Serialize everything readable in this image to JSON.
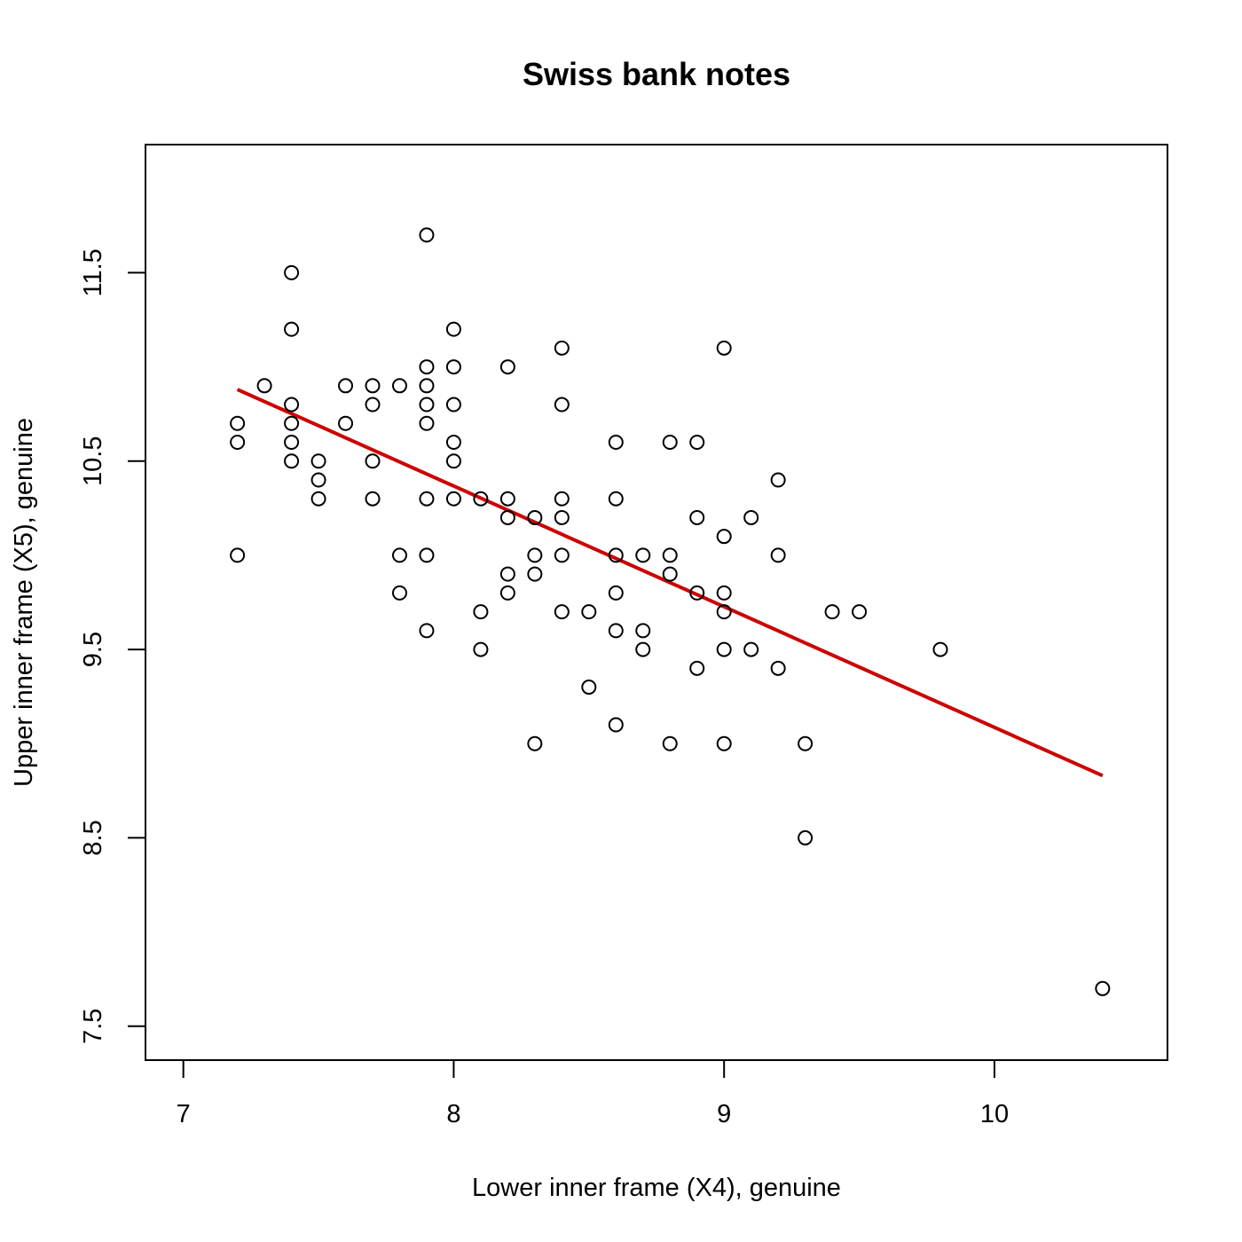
{
  "chart_data": {
    "type": "scatter",
    "title": "Swiss bank notes",
    "xlabel": "Lower inner frame (X4), genuine",
    "ylabel": "Upper inner frame (X5), genuine",
    "xlim": [
      6.86,
      10.64
    ],
    "ylim": [
      7.32,
      12.18
    ],
    "xticks": [
      "7",
      "8",
      "9",
      "10"
    ],
    "yticks": [
      "7.5",
      "8.5",
      "9.5",
      "10.5",
      "11.5"
    ],
    "grid": false,
    "point_color": "#000000",
    "line_color": "#cc0000",
    "points": [
      {
        "x": 7.2,
        "y": 10.7
      },
      {
        "x": 7.2,
        "y": 10.6
      },
      {
        "x": 7.2,
        "y": 10.0
      },
      {
        "x": 7.3,
        "y": 10.9
      },
      {
        "x": 7.4,
        "y": 11.5
      },
      {
        "x": 7.4,
        "y": 11.2
      },
      {
        "x": 7.4,
        "y": 10.8
      },
      {
        "x": 7.4,
        "y": 10.7
      },
      {
        "x": 7.4,
        "y": 10.6
      },
      {
        "x": 7.4,
        "y": 10.5
      },
      {
        "x": 7.5,
        "y": 10.5
      },
      {
        "x": 7.5,
        "y": 10.4
      },
      {
        "x": 7.5,
        "y": 10.3
      },
      {
        "x": 7.6,
        "y": 10.9
      },
      {
        "x": 7.6,
        "y": 10.7
      },
      {
        "x": 7.7,
        "y": 10.9
      },
      {
        "x": 7.7,
        "y": 10.8
      },
      {
        "x": 7.7,
        "y": 10.5
      },
      {
        "x": 7.7,
        "y": 10.3
      },
      {
        "x": 7.8,
        "y": 10.9
      },
      {
        "x": 7.8,
        "y": 10.0
      },
      {
        "x": 7.8,
        "y": 9.8
      },
      {
        "x": 7.9,
        "y": 11.7
      },
      {
        "x": 7.9,
        "y": 11.0
      },
      {
        "x": 7.9,
        "y": 10.9
      },
      {
        "x": 7.9,
        "y": 10.8
      },
      {
        "x": 7.9,
        "y": 10.7
      },
      {
        "x": 7.9,
        "y": 10.3
      },
      {
        "x": 7.9,
        "y": 10.0
      },
      {
        "x": 7.9,
        "y": 9.6
      },
      {
        "x": 8.0,
        "y": 11.2
      },
      {
        "x": 8.0,
        "y": 11.0
      },
      {
        "x": 8.0,
        "y": 10.8
      },
      {
        "x": 8.0,
        "y": 10.6
      },
      {
        "x": 8.0,
        "y": 10.5
      },
      {
        "x": 8.0,
        "y": 10.3
      },
      {
        "x": 8.1,
        "y": 10.3
      },
      {
        "x": 8.1,
        "y": 9.7
      },
      {
        "x": 8.1,
        "y": 9.5
      },
      {
        "x": 8.2,
        "y": 11.0
      },
      {
        "x": 8.2,
        "y": 10.3
      },
      {
        "x": 8.2,
        "y": 10.2
      },
      {
        "x": 8.2,
        "y": 9.9
      },
      {
        "x": 8.2,
        "y": 9.8
      },
      {
        "x": 8.3,
        "y": 10.2
      },
      {
        "x": 8.3,
        "y": 10.0
      },
      {
        "x": 8.3,
        "y": 9.9
      },
      {
        "x": 8.3,
        "y": 9.0
      },
      {
        "x": 8.4,
        "y": 11.1
      },
      {
        "x": 8.4,
        "y": 10.8
      },
      {
        "x": 8.4,
        "y": 10.3
      },
      {
        "x": 8.4,
        "y": 10.2
      },
      {
        "x": 8.4,
        "y": 10.0
      },
      {
        "x": 8.4,
        "y": 9.7
      },
      {
        "x": 8.5,
        "y": 9.7
      },
      {
        "x": 8.5,
        "y": 9.3
      },
      {
        "x": 8.6,
        "y": 10.6
      },
      {
        "x": 8.6,
        "y": 10.3
      },
      {
        "x": 8.6,
        "y": 10.0
      },
      {
        "x": 8.6,
        "y": 9.8
      },
      {
        "x": 8.6,
        "y": 9.6
      },
      {
        "x": 8.6,
        "y": 9.1
      },
      {
        "x": 8.7,
        "y": 10.0
      },
      {
        "x": 8.7,
        "y": 9.6
      },
      {
        "x": 8.7,
        "y": 9.5
      },
      {
        "x": 8.8,
        "y": 10.6
      },
      {
        "x": 8.8,
        "y": 10.0
      },
      {
        "x": 8.8,
        "y": 9.9
      },
      {
        "x": 8.8,
        "y": 9.0
      },
      {
        "x": 8.9,
        "y": 10.6
      },
      {
        "x": 8.9,
        "y": 10.2
      },
      {
        "x": 8.9,
        "y": 9.8
      },
      {
        "x": 8.9,
        "y": 9.4
      },
      {
        "x": 9.0,
        "y": 11.1
      },
      {
        "x": 9.0,
        "y": 10.1
      },
      {
        "x": 9.0,
        "y": 9.8
      },
      {
        "x": 9.0,
        "y": 9.7
      },
      {
        "x": 9.0,
        "y": 9.5
      },
      {
        "x": 9.0,
        "y": 9.0
      },
      {
        "x": 9.1,
        "y": 10.2
      },
      {
        "x": 9.1,
        "y": 9.5
      },
      {
        "x": 9.2,
        "y": 10.4
      },
      {
        "x": 9.2,
        "y": 10.0
      },
      {
        "x": 9.2,
        "y": 9.4
      },
      {
        "x": 9.3,
        "y": 9.0
      },
      {
        "x": 9.3,
        "y": 8.5
      },
      {
        "x": 9.4,
        "y": 9.7
      },
      {
        "x": 9.5,
        "y": 9.7
      },
      {
        "x": 9.8,
        "y": 9.5
      },
      {
        "x": 10.4,
        "y": 7.7
      }
    ],
    "fit_line": {
      "x": [
        7.2,
        10.4
      ],
      "y": [
        10.88,
        8.83
      ]
    }
  }
}
